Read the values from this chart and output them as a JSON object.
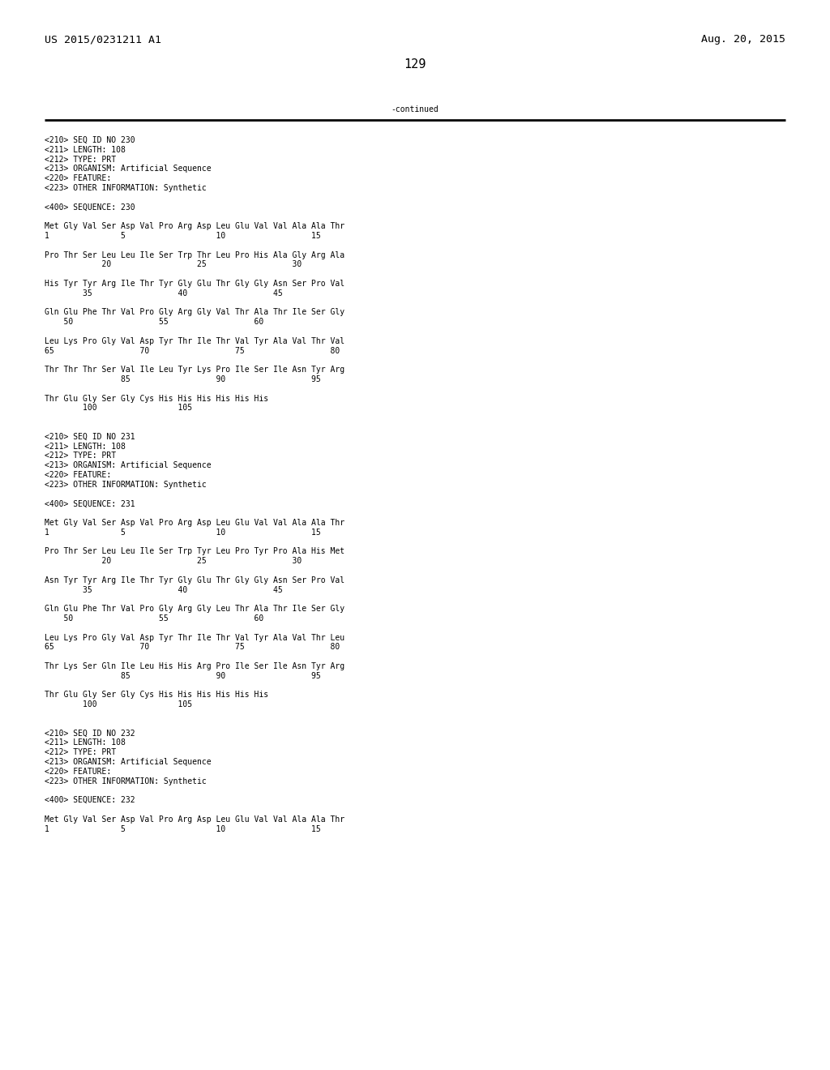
{
  "header_left": "US 2015/0231211 A1",
  "header_right": "Aug. 20, 2015",
  "page_number": "129",
  "continued_text": "-continued",
  "background_color": "#ffffff",
  "text_color": "#000000",
  "font_size_header": 9.5,
  "font_size_body": 7.0,
  "font_size_page": 11,
  "lines": [
    "<210> SEQ ID NO 230",
    "<211> LENGTH: 108",
    "<212> TYPE: PRT",
    "<213> ORGANISM: Artificial Sequence",
    "<220> FEATURE:",
    "<223> OTHER INFORMATION: Synthetic",
    "",
    "<400> SEQUENCE: 230",
    "",
    "Met Gly Val Ser Asp Val Pro Arg Asp Leu Glu Val Val Ala Ala Thr",
    "1               5                   10                  15",
    "",
    "Pro Thr Ser Leu Leu Ile Ser Trp Thr Leu Pro His Ala Gly Arg Ala",
    "            20                  25                  30",
    "",
    "His Tyr Tyr Arg Ile Thr Tyr Gly Glu Thr Gly Gly Asn Ser Pro Val",
    "        35                  40                  45",
    "",
    "Gln Glu Phe Thr Val Pro Gly Arg Gly Val Thr Ala Thr Ile Ser Gly",
    "    50                  55                  60",
    "",
    "Leu Lys Pro Gly Val Asp Tyr Thr Ile Thr Val Tyr Ala Val Thr Val",
    "65                  70                  75                  80",
    "",
    "Thr Thr Thr Ser Val Ile Leu Tyr Lys Pro Ile Ser Ile Asn Tyr Arg",
    "                85                  90                  95",
    "",
    "Thr Glu Gly Ser Gly Cys His His His His His His",
    "        100                 105",
    "",
    "",
    "<210> SEQ ID NO 231",
    "<211> LENGTH: 108",
    "<212> TYPE: PRT",
    "<213> ORGANISM: Artificial Sequence",
    "<220> FEATURE:",
    "<223> OTHER INFORMATION: Synthetic",
    "",
    "<400> SEQUENCE: 231",
    "",
    "Met Gly Val Ser Asp Val Pro Arg Asp Leu Glu Val Val Ala Ala Thr",
    "1               5                   10                  15",
    "",
    "Pro Thr Ser Leu Leu Ile Ser Trp Tyr Leu Pro Tyr Pro Ala His Met",
    "            20                  25                  30",
    "",
    "Asn Tyr Tyr Arg Ile Thr Tyr Gly Glu Thr Gly Gly Asn Ser Pro Val",
    "        35                  40                  45",
    "",
    "Gln Glu Phe Thr Val Pro Gly Arg Gly Leu Thr Ala Thr Ile Ser Gly",
    "    50                  55                  60",
    "",
    "Leu Lys Pro Gly Val Asp Tyr Thr Ile Thr Val Tyr Ala Val Thr Leu",
    "65                  70                  75                  80",
    "",
    "Thr Lys Ser Gln Ile Leu His His Arg Pro Ile Ser Ile Asn Tyr Arg",
    "                85                  90                  95",
    "",
    "Thr Glu Gly Ser Gly Cys His His His His His His",
    "        100                 105",
    "",
    "",
    "<210> SEQ ID NO 232",
    "<211> LENGTH: 108",
    "<212> TYPE: PRT",
    "<213> ORGANISM: Artificial Sequence",
    "<220> FEATURE:",
    "<223> OTHER INFORMATION: Synthetic",
    "",
    "<400> SEQUENCE: 232",
    "",
    "Met Gly Val Ser Asp Val Pro Arg Asp Leu Glu Val Val Ala Ala Thr",
    "1               5                   10                  15"
  ]
}
